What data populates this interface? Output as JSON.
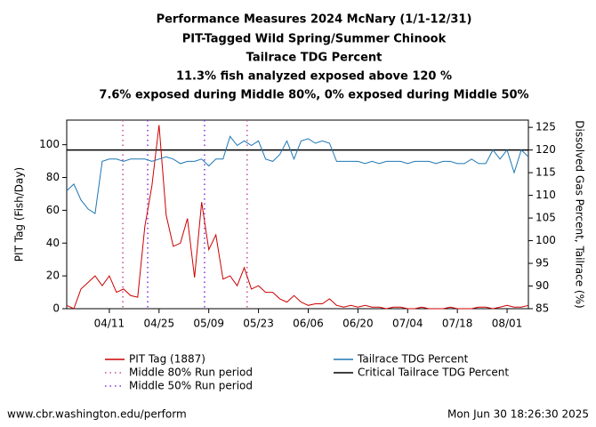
{
  "chart_data": {
    "type": "line",
    "title": [
      "Performance Measures 2024 McNary (1/1-12/31)",
      "PIT-Tagged Wild Spring/Summer Chinook",
      "Tailrace TDG Percent",
      "11.3% fish analyzed exposed above 120 %",
      "7.6% exposed during Middle 80%, 0% exposed during Middle 50%"
    ],
    "ylabel": "PIT Tag (Fish/Day)",
    "y2label": "Dissolved Gas Percent, Tailrace (%)",
    "categories": [
      null,
      null,
      null,
      null,
      null,
      null,
      "04/11",
      null,
      null,
      null,
      null,
      null,
      null,
      "04/25",
      null,
      null,
      null,
      null,
      null,
      null,
      "05/09",
      null,
      null,
      null,
      null,
      null,
      null,
      "05/23",
      null,
      null,
      null,
      null,
      null,
      null,
      "06/06",
      null,
      null,
      null,
      null,
      null,
      null,
      "06/20",
      null,
      null,
      null,
      null,
      null,
      null,
      "07/04",
      null,
      null,
      null,
      null,
      null,
      null,
      "07/18",
      null,
      null,
      null,
      null,
      null,
      null,
      "08/01",
      null,
      null,
      null
    ],
    "series": [
      {
        "name": "PIT Tag (1887)",
        "color": "#cc0000",
        "axis": "y",
        "values": [
          2,
          0,
          12,
          16,
          20,
          14,
          20,
          10,
          12,
          8,
          7,
          50,
          75,
          112,
          57,
          38,
          40,
          55,
          19,
          65,
          36,
          45,
          18,
          20,
          14,
          25,
          12,
          14,
          10,
          10,
          6,
          4,
          8,
          4,
          2,
          3,
          3,
          6,
          2,
          1,
          2,
          1,
          2,
          1,
          1,
          0,
          1,
          1,
          0,
          0,
          1,
          0,
          0,
          0,
          1,
          0,
          0,
          0,
          1,
          1,
          0,
          1,
          2,
          1,
          1,
          2
        ]
      },
      {
        "name": "Tailrace TDG Percent",
        "color": "#1f77b4",
        "axis": "y2",
        "values": [
          111,
          112.5,
          109,
          107,
          106,
          117.5,
          118,
          118,
          117.5,
          118,
          118,
          118,
          117.5,
          118,
          118.5,
          118,
          117,
          117.5,
          117.5,
          118,
          116.5,
          118,
          118,
          123,
          121,
          122,
          121,
          122,
          118,
          117.5,
          119,
          122,
          118,
          122,
          122.5,
          121.5,
          122,
          121.5,
          117.5,
          117.5,
          117.5,
          117.5,
          117,
          117.5,
          117,
          117.5,
          117.5,
          117.5,
          117,
          117.5,
          117.5,
          117.5,
          117,
          117.5,
          117.5,
          117,
          117,
          118,
          117,
          117,
          120,
          118,
          120,
          115,
          120,
          118.5
        ]
      }
    ],
    "vlines": [
      {
        "name": "Middle 80% Run period",
        "color": "#c0509a",
        "x": [
          7.9,
          25.4
        ]
      },
      {
        "name": "Middle 50% Run period",
        "color": "#8a2be2",
        "x": [
          11.4,
          19.4
        ]
      }
    ],
    "hline": {
      "name": "Critical Tailrace TDG Percent",
      "color": "#000000",
      "axis": "y2",
      "value": 120
    },
    "ylim": [
      0,
      115
    ],
    "yticks": [
      0,
      20,
      40,
      60,
      80,
      100
    ],
    "y2lim": [
      85,
      126.6
    ],
    "y2ticks": [
      85,
      90,
      95,
      100,
      105,
      110,
      115,
      120,
      125
    ],
    "source": "www.cbr.washington.edu/perform",
    "timestamp": "Mon Jun 30 18:26:30 2025"
  }
}
